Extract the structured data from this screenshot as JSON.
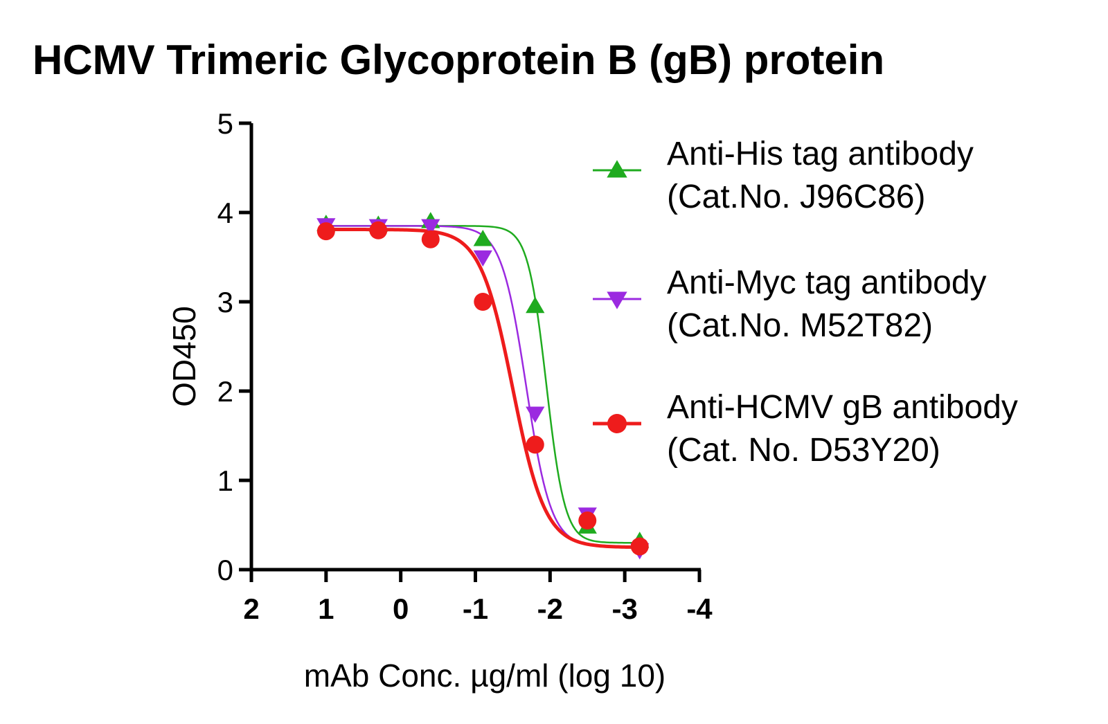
{
  "chart_data": {
    "type": "line",
    "title": "HCMV Trimeric Glycoprotein B (gB) protein",
    "xlabel": "mAb Conc. µg/ml (log 10)",
    "ylabel": "OD450",
    "xlim": [
      2,
      -4
    ],
    "ylim": [
      0,
      5
    ],
    "x_ticks": [
      2,
      1,
      0,
      -1,
      -2,
      -3,
      -4
    ],
    "y_ticks": [
      0,
      1,
      2,
      3,
      4,
      5
    ],
    "x_tick_labels": [
      "2",
      "1",
      "0",
      "-1",
      "-2",
      "-3",
      "-4"
    ],
    "y_tick_labels": [
      "0",
      "1",
      "2",
      "3",
      "4",
      "5"
    ],
    "legend_position": "right",
    "grid": false,
    "series": [
      {
        "name_line1": "Anti-His tag antibody",
        "name_line2": "(Cat.No. J96C86)",
        "color": "#1fab1f",
        "marker": "triangle-up",
        "x": [
          1.0,
          0.3,
          -0.4,
          -1.1,
          -1.8,
          -2.5,
          -3.2
        ],
        "y": [
          3.87,
          3.86,
          3.9,
          3.7,
          2.95,
          0.48,
          0.32
        ],
        "fit": {
          "top": 3.85,
          "bottom": 0.3,
          "logEC50": -1.95,
          "hill": 3.5
        }
      },
      {
        "name_line1": "Anti-Myc tag antibody",
        "name_line2": "(Cat.No. M52T82)",
        "color": "#9b2ae0",
        "marker": "triangle-down",
        "x": [
          1.0,
          0.3,
          -0.4,
          -1.1,
          -1.8,
          -2.5,
          -3.2
        ],
        "y": [
          3.86,
          3.85,
          3.85,
          3.5,
          1.75,
          0.62,
          0.22
        ],
        "fit": {
          "top": 3.85,
          "bottom": 0.26,
          "logEC50": -1.68,
          "hill": 2.6
        }
      },
      {
        "name_line1": "Anti-HCMV gB antibody",
        "name_line2": "(Cat. No. D53Y20)",
        "color": "#ee1c1c",
        "marker": "circle",
        "x": [
          1.0,
          0.3,
          -0.4,
          -1.1,
          -1.8,
          -2.5,
          -3.2
        ],
        "y": [
          3.79,
          3.8,
          3.7,
          3.0,
          1.4,
          0.55,
          0.26
        ],
        "fit": {
          "top": 3.81,
          "bottom": 0.25,
          "logEC50": -1.5,
          "hill": 2.0
        }
      }
    ]
  }
}
